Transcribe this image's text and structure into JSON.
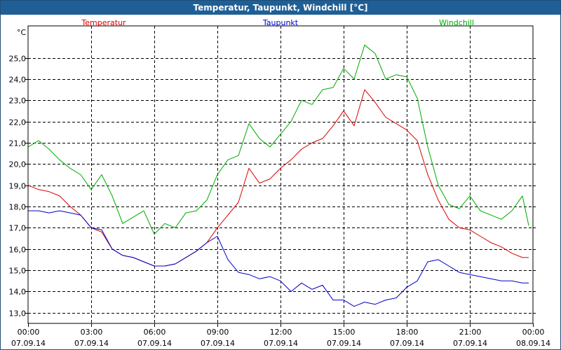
{
  "window_title": "Temperatur, Taupunkt, Windchill [°C]",
  "colors": {
    "titlebar": "#1f5f95",
    "temperatur": "#dd0000",
    "taupunkt": "#0000cc",
    "windchill": "#00aa00",
    "grid": "#000000"
  },
  "chart_data": {
    "type": "line",
    "title": "Temperatur, Taupunkt, Windchill [°C]",
    "xlabel": "",
    "ylabel": "°C",
    "ylim": [
      12.5,
      26.5
    ],
    "y_ticks": [
      "13,0",
      "14,0",
      "15,0",
      "16,0",
      "17,0",
      "18,0",
      "19,0",
      "20,0",
      "21,0",
      "22,0",
      "23,0",
      "24,0",
      "25,0"
    ],
    "y_tick_values": [
      13,
      14,
      15,
      16,
      17,
      18,
      19,
      20,
      21,
      22,
      23,
      24,
      25
    ],
    "xlim": [
      0,
      24
    ],
    "x_ticks": [
      {
        "time": "00:00",
        "date": "07.09.14",
        "hour": 0
      },
      {
        "time": "03:00",
        "date": "07.09.14",
        "hour": 3
      },
      {
        "time": "06:00",
        "date": "07.09.14",
        "hour": 6
      },
      {
        "time": "09:00",
        "date": "07.09.14",
        "hour": 9
      },
      {
        "time": "12:00",
        "date": "07.09.14",
        "hour": 12
      },
      {
        "time": "15:00",
        "date": "07.09.14",
        "hour": 15
      },
      {
        "time": "18:00",
        "date": "07.09.14",
        "hour": 18
      },
      {
        "time": "21:00",
        "date": "07.09.14",
        "hour": 21
      },
      {
        "time": "00:00",
        "date": "08.09.14",
        "hour": 24
      }
    ],
    "grid": true,
    "legend_position": "top",
    "series": [
      {
        "name": "Temperatur",
        "color": "#dd0000",
        "x": [
          0,
          0.5,
          1,
          1.5,
          2,
          2.5,
          3,
          3.5,
          4,
          4.5,
          5,
          5.5,
          6,
          6.5,
          7,
          7.5,
          8,
          8.5,
          9,
          9.5,
          10,
          10.5,
          11,
          11.5,
          12,
          12.5,
          13,
          13.5,
          14,
          14.5,
          15,
          15.5,
          16,
          16.5,
          17,
          17.5,
          18,
          18.5,
          19,
          19.5,
          20,
          20.5,
          21,
          21.5,
          22,
          22.5,
          23,
          23.5,
          23.8
        ],
        "values": [
          19.0,
          18.8,
          18.7,
          18.5,
          18.0,
          17.6,
          17.0,
          16.8,
          16.0,
          15.7,
          15.6,
          15.4,
          15.2,
          15.2,
          15.3,
          15.6,
          15.9,
          16.3,
          17.0,
          17.6,
          18.2,
          19.8,
          19.1,
          19.3,
          19.8,
          20.2,
          20.7,
          21.0,
          21.2,
          21.8,
          22.5,
          21.8,
          23.5,
          22.9,
          22.2,
          21.9,
          21.6,
          21.1,
          19.5,
          18.3,
          17.4,
          17.0,
          16.9,
          16.6,
          16.3,
          16.1,
          15.8,
          15.6,
          15.6
        ]
      },
      {
        "name": "Taupunkt",
        "color": "#0000cc",
        "x": [
          0,
          0.5,
          1,
          1.5,
          2,
          2.5,
          3,
          3.5,
          4,
          4.5,
          5,
          5.5,
          6,
          6.5,
          7,
          7.5,
          8,
          8.5,
          9,
          9.5,
          10,
          10.5,
          11,
          11.5,
          12,
          12.5,
          13,
          13.5,
          14,
          14.5,
          15,
          15.5,
          16,
          16.5,
          17,
          17.5,
          18,
          18.5,
          19,
          19.5,
          20,
          20.5,
          21,
          21.5,
          22,
          22.5,
          23,
          23.5,
          23.8
        ],
        "values": [
          17.8,
          17.8,
          17.7,
          17.8,
          17.7,
          17.6,
          17.0,
          16.9,
          16.0,
          15.7,
          15.6,
          15.4,
          15.2,
          15.2,
          15.3,
          15.6,
          15.9,
          16.3,
          16.6,
          15.5,
          14.9,
          14.8,
          14.6,
          14.7,
          14.5,
          14.0,
          14.4,
          14.1,
          14.3,
          13.6,
          13.6,
          13.3,
          13.5,
          13.4,
          13.6,
          13.7,
          14.2,
          14.5,
          15.4,
          15.5,
          15.2,
          14.9,
          14.8,
          14.7,
          14.6,
          14.5,
          14.5,
          14.4,
          14.4
        ]
      },
      {
        "name": "Windchill",
        "color": "#00aa00",
        "x": [
          0,
          0.5,
          1,
          1.5,
          2,
          2.5,
          3,
          3.5,
          4,
          4.5,
          5,
          5.5,
          6,
          6.5,
          7,
          7.5,
          8,
          8.5,
          9,
          9.5,
          10,
          10.5,
          11,
          11.5,
          12,
          12.5,
          13,
          13.5,
          14,
          14.5,
          15,
          15.5,
          16,
          16.5,
          17,
          17.5,
          18,
          18.5,
          19,
          19.5,
          20,
          20.5,
          21,
          21.5,
          22,
          22.5,
          23,
          23.5,
          23.8
        ],
        "values": [
          20.8,
          21.1,
          20.7,
          20.2,
          19.8,
          19.5,
          18.8,
          19.5,
          18.5,
          17.2,
          17.5,
          17.8,
          16.7,
          17.2,
          17.0,
          17.7,
          17.8,
          18.3,
          19.5,
          20.2,
          20.4,
          21.9,
          21.2,
          20.8,
          21.4,
          22.0,
          23.0,
          22.8,
          23.5,
          23.6,
          24.5,
          24.0,
          25.6,
          25.2,
          24.0,
          24.2,
          24.1,
          23.1,
          20.8,
          19.0,
          18.1,
          17.9,
          18.5,
          17.8,
          17.6,
          17.4,
          17.8,
          18.5,
          17.1
        ]
      }
    ]
  }
}
